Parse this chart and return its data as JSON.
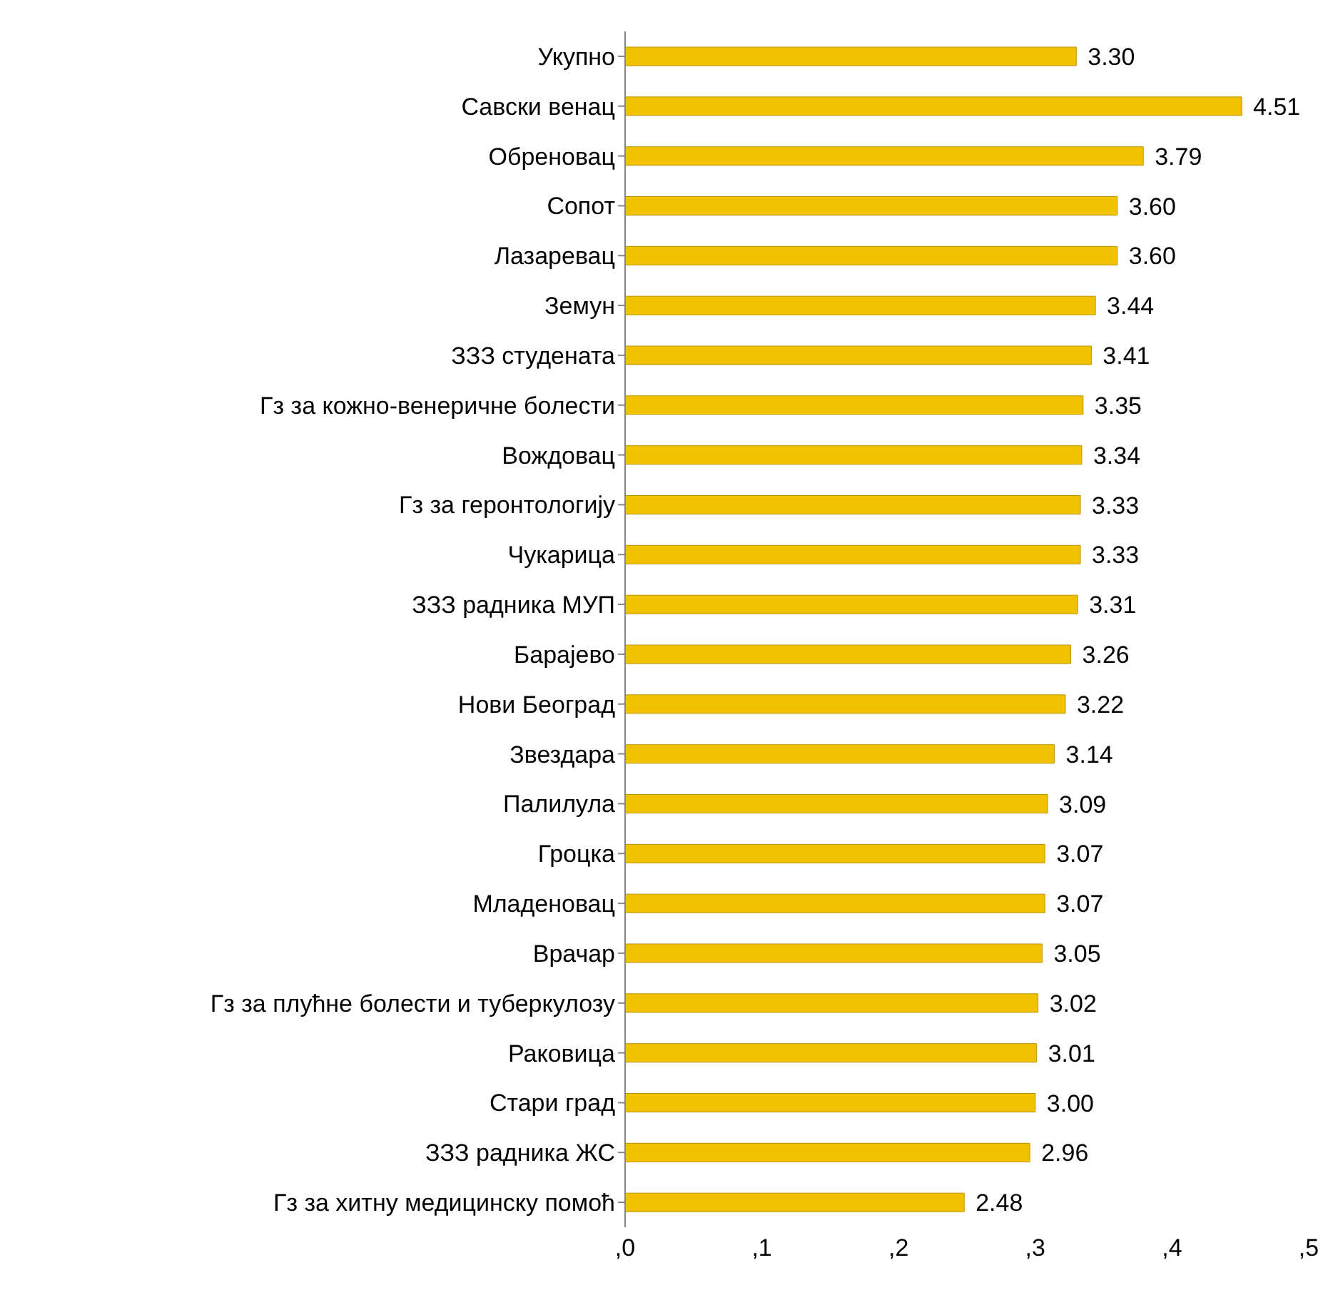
{
  "chart_data": {
    "type": "bar",
    "orientation": "horizontal",
    "categories": [
      "Укупно",
      "Савски венац",
      "Обреновац",
      "Сопот",
      "Лазаревац",
      "Земун",
      "ЗЗЗ студената",
      "Гз за кожно-венеричне болести",
      "Вождовац",
      "Гз за геронтологију",
      "Чукарица",
      "ЗЗЗ радника МУП",
      "Барајево",
      "Нови Београд",
      "Звездара",
      "Палилула",
      "Гроцка",
      "Младеновац",
      "Врачар",
      "Гз за плућне болести и туберкулозу",
      "Раковица",
      "Стари град",
      "ЗЗЗ радника ЖС",
      "Гз за хитну медицинску помоћ"
    ],
    "values": [
      3.3,
      4.51,
      3.79,
      3.6,
      3.6,
      3.44,
      3.41,
      3.35,
      3.34,
      3.33,
      3.33,
      3.31,
      3.26,
      3.22,
      3.14,
      3.09,
      3.07,
      3.07,
      3.05,
      3.02,
      3.01,
      3.0,
      2.96,
      2.48
    ],
    "value_labels": [
      "3.30",
      "4.51",
      "3.79",
      "3.60",
      "3.60",
      "3.44",
      "3.41",
      "3.35",
      "3.34",
      "3.33",
      "3.33",
      "3.31",
      "3.26",
      "3.22",
      "3.14",
      "3.09",
      "3.07",
      "3.07",
      "3.05",
      "3.02",
      "3.01",
      "3.00",
      "2.96",
      "2.48"
    ],
    "color": "#f2c200",
    "xlim": [
      0,
      5
    ],
    "xticks": [
      {
        "value": 0,
        "label": ",0"
      },
      {
        "value": 1,
        "label": ",1"
      },
      {
        "value": 2,
        "label": ",2"
      },
      {
        "value": 3,
        "label": ",3"
      },
      {
        "value": 4,
        "label": ",4"
      },
      {
        "value": 5,
        "label": ",5"
      }
    ],
    "grid": false
  }
}
